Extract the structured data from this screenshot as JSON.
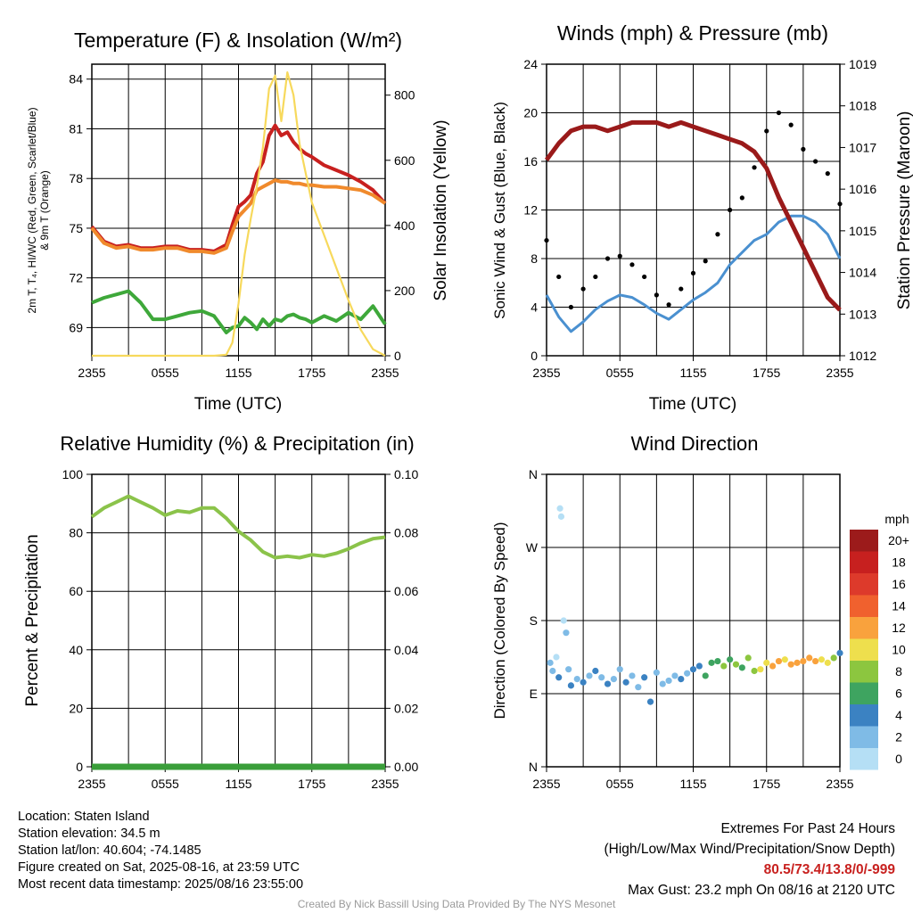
{
  "chart_data": [
    {
      "id": "temp",
      "type": "line",
      "title": "Temperature (F) & Insolation (W/m²)",
      "ylabel_lines": [
        "2m T, T₄, HI/WC (Red, Green, Scarlet/Blue)",
        "& 9m T (Orange)"
      ],
      "ylabel_right": "Solar Insolation (Yellow)",
      "xlabel": "Time (UTC)",
      "x_ticks": [
        "2355",
        "0555",
        "1155",
        "1755",
        "2355"
      ],
      "y_ticks": [
        69,
        72,
        75,
        78,
        81,
        84
      ],
      "y_right_ticks": [
        0,
        200,
        400,
        600,
        800
      ],
      "ylim": [
        67.3,
        84.9
      ],
      "y_right_lim": [
        0,
        895
      ],
      "grid": true,
      "x_hours": [
        0,
        1,
        2,
        3,
        4,
        5,
        6,
        7,
        8,
        9,
        10,
        11,
        11.5,
        12,
        12.5,
        13,
        13.5,
        14,
        14.5,
        15,
        15.5,
        16,
        16.5,
        17,
        17.5,
        18,
        19,
        20,
        21,
        22,
        23,
        24
      ],
      "series": [
        {
          "name": "2m T",
          "color": "#c8201f",
          "values": [
            75.1,
            74.2,
            73.9,
            74.0,
            73.8,
            73.8,
            73.9,
            73.9,
            73.7,
            73.7,
            73.6,
            74.0,
            75.2,
            76.3,
            76.6,
            77.0,
            78.3,
            79.0,
            80.6,
            81.2,
            80.6,
            80.8,
            80.2,
            79.8,
            79.5,
            79.3,
            78.8,
            78.5,
            78.2,
            77.8,
            77.3,
            76.5
          ]
        },
        {
          "name": "9m T",
          "color": "#f08a2c",
          "values": [
            75.0,
            74.1,
            73.8,
            73.9,
            73.7,
            73.7,
            73.8,
            73.8,
            73.6,
            73.6,
            73.5,
            73.8,
            74.8,
            75.7,
            76.1,
            76.5,
            77.3,
            77.5,
            77.7,
            77.9,
            77.8,
            77.8,
            77.7,
            77.7,
            77.6,
            77.6,
            77.5,
            77.5,
            77.4,
            77.3,
            77.0,
            76.5
          ]
        },
        {
          "name": "Td",
          "color": "#3ea83a",
          "values": [
            70.5,
            70.8,
            71.0,
            71.2,
            70.5,
            69.5,
            69.5,
            69.7,
            69.9,
            70.0,
            69.7,
            68.7,
            69.0,
            69.1,
            69.6,
            69.3,
            68.9,
            69.5,
            69.1,
            69.5,
            69.4,
            69.7,
            69.8,
            69.6,
            69.5,
            69.3,
            69.7,
            69.4,
            69.9,
            69.5,
            70.3,
            69.2
          ]
        },
        {
          "name": "Insolation",
          "color": "#f7d95c",
          "axis": "right",
          "values": [
            0,
            0,
            0,
            0,
            0,
            0,
            0,
            0,
            0,
            0,
            0,
            3,
            40,
            160,
            310,
            420,
            520,
            640,
            820,
            860,
            720,
            870,
            800,
            650,
            560,
            470,
            370,
            270,
            170,
            80,
            20,
            0
          ]
        }
      ]
    },
    {
      "id": "wind",
      "type": "line",
      "title": "Winds (mph) & Pressure (mb)",
      "ylabel": "Sonic Wind & Gust (Blue, Black)",
      "ylabel_right": "Station Pressure (Maroon)",
      "xlabel": "Time (UTC)",
      "x_ticks": [
        "2355",
        "0555",
        "1155",
        "1755",
        "2355"
      ],
      "y_ticks": [
        0,
        4,
        8,
        12,
        16,
        20,
        24
      ],
      "y_right_ticks": [
        1012,
        1013,
        1014,
        1015,
        1016,
        1017,
        1018,
        1019
      ],
      "ylim": [
        0,
        24
      ],
      "y_right_lim": [
        1012,
        1019
      ],
      "grid": true,
      "x_hours": [
        0,
        1,
        2,
        3,
        4,
        5,
        6,
        7,
        8,
        9,
        10,
        11,
        12,
        13,
        14,
        15,
        16,
        17,
        18,
        19,
        20,
        21,
        22,
        23,
        24
      ],
      "series": [
        {
          "name": "Sonic Wind",
          "color": "#4a90d0",
          "values": [
            5.0,
            3.2,
            2.0,
            2.8,
            3.8,
            4.5,
            5.0,
            4.8,
            4.2,
            3.5,
            3.0,
            3.8,
            4.6,
            5.2,
            6.0,
            7.5,
            8.5,
            9.5,
            10.0,
            11.0,
            11.5,
            11.5,
            11.0,
            10.0,
            8.0
          ]
        },
        {
          "name": "Gust",
          "color": "#000000",
          "values": [
            9.5,
            6.5,
            4.0,
            5.5,
            6.5,
            8.0,
            8.2,
            7.5,
            6.5,
            5.0,
            4.2,
            5.5,
            6.8,
            7.8,
            10.0,
            12.0,
            13.0,
            15.5,
            18.5,
            20.0,
            19.0,
            17.0,
            16.0,
            15.0,
            12.5
          ]
        },
        {
          "name": "Station Pressure",
          "color": "#9a1a1a",
          "axis": "right",
          "values": [
            1016.7,
            1017.1,
            1017.4,
            1017.5,
            1017.5,
            1017.4,
            1017.5,
            1017.6,
            1017.6,
            1017.6,
            1017.5,
            1017.6,
            1017.5,
            1017.4,
            1017.3,
            1017.2,
            1017.1,
            1016.9,
            1016.5,
            1015.8,
            1015.2,
            1014.6,
            1014.0,
            1013.4,
            1013.1
          ]
        }
      ]
    },
    {
      "id": "rh",
      "type": "line",
      "title": "Relative Humidity (%) & Precipitation (in)",
      "ylabel": "Percent & Precipitation",
      "x_ticks": [
        "2355",
        "0555",
        "1155",
        "1755",
        "2355"
      ],
      "y_ticks": [
        0,
        20,
        40,
        60,
        80,
        100
      ],
      "y_right_ticks": [
        "0.00",
        "0.02",
        "0.04",
        "0.06",
        "0.08",
        "0.10"
      ],
      "ylim": [
        0,
        100
      ],
      "y_right_lim": [
        0,
        0.1
      ],
      "grid": true,
      "x_hours": [
        0,
        1,
        2,
        3,
        4,
        5,
        6,
        7,
        8,
        9,
        10,
        11,
        12,
        13,
        14,
        15,
        16,
        17,
        18,
        19,
        20,
        21,
        22,
        23,
        24
      ],
      "series": [
        {
          "name": "Relative Humidity",
          "color": "#8bc34a",
          "values": [
            85.5,
            88.5,
            90.5,
            92.5,
            90.5,
            88.5,
            86.0,
            87.5,
            87.0,
            88.5,
            88.5,
            85.0,
            80.5,
            77.5,
            73.5,
            71.5,
            72.0,
            71.5,
            72.5,
            72.0,
            73.0,
            74.5,
            76.5,
            78.0,
            78.5
          ]
        },
        {
          "name": "Precipitation",
          "color": "#3a9e3a",
          "axis": "right",
          "values": [
            0,
            0,
            0,
            0,
            0,
            0,
            0,
            0,
            0,
            0,
            0,
            0,
            0,
            0,
            0,
            0,
            0,
            0,
            0,
            0,
            0,
            0,
            0,
            0,
            0
          ]
        }
      ]
    },
    {
      "id": "wdir",
      "type": "scatter",
      "title": "Wind Direction",
      "ylabel": "Direction (Colored By Speed)",
      "x_ticks": [
        "2355",
        "0555",
        "1155",
        "1755",
        "2355"
      ],
      "y_ticks": [
        "N",
        "E",
        "S",
        "W",
        "N"
      ],
      "ylim": [
        0,
        360
      ],
      "grid": true,
      "x_hours": [
        0.3,
        0.5,
        0.8,
        1.0,
        1.1,
        1.2,
        1.4,
        1.6,
        1.8,
        2.0,
        2.5,
        3.0,
        3.5,
        4.0,
        4.5,
        5.0,
        5.5,
        6.0,
        6.5,
        7.0,
        7.5,
        8.0,
        8.5,
        9.0,
        9.5,
        10.0,
        10.5,
        11.0,
        11.5,
        12.0,
        12.5,
        13.0,
        13.5,
        14.0,
        14.5,
        15.0,
        15.5,
        16.0,
        16.5,
        17.0,
        17.5,
        18.0,
        18.5,
        19.0,
        19.5,
        20.0,
        20.5,
        21.0,
        21.5,
        22.0,
        22.5,
        23.0,
        23.5,
        24.0
      ],
      "values": [
        128,
        118,
        135,
        110,
        318,
        308,
        180,
        165,
        120,
        100,
        108,
        104,
        112,
        118,
        110,
        102,
        108,
        120,
        104,
        112,
        98,
        110,
        80,
        116,
        102,
        106,
        112,
        108,
        115,
        120,
        124,
        112,
        128,
        130,
        124,
        132,
        126,
        122,
        134,
        118,
        120,
        128,
        124,
        130,
        132,
        126,
        128,
        130,
        134,
        130,
        132,
        128,
        134,
        140
      ],
      "speed": [
        2,
        3,
        1,
        4,
        1,
        1,
        1,
        3,
        2,
        4,
        3,
        4,
        2,
        4,
        3,
        4,
        2,
        3,
        4,
        2,
        3,
        4,
        4,
        2,
        3,
        2,
        3,
        4,
        2,
        4,
        5,
        7,
        6,
        7,
        8,
        7,
        8,
        7,
        9,
        8,
        10,
        11,
        13,
        12,
        11,
        12,
        13,
        12,
        13,
        12,
        11,
        10,
        9,
        4
      ],
      "colorbar": {
        "label": "mph",
        "ticks": [
          "20+",
          "18",
          "16",
          "14",
          "12",
          "10",
          "8",
          "6",
          "4",
          "2",
          "0"
        ],
        "colors": [
          "#9c1b1b",
          "#c7201f",
          "#dd3a2b",
          "#f0612e",
          "#f9a23d",
          "#eedf4d",
          "#8cc63f",
          "#3ea460",
          "#3b82c2",
          "#7fbbe6",
          "#b5dff5"
        ]
      }
    }
  ],
  "info_left": [
    "Location: Staten Island",
    "Station elevation: 34.5 m",
    "Station lat/lon: 40.604; -74.1485",
    "Figure created on Sat, 2025-08-16, at 23:59 UTC",
    "Most recent data timestamp: 2025/08/16 23:55:00"
  ],
  "extremes": {
    "title": "Extremes For Past 24 Hours",
    "subtitle": "(High/Low/Max Wind/Precipitation/Snow Depth)",
    "values": "80.5/73.4/13.8/0/-999",
    "max_gust": "Max Gust: 23.2 mph On 08/16 at 2120 UTC"
  },
  "credit": "Created By Nick Bassill Using Data Provided By The NYS Mesonet"
}
